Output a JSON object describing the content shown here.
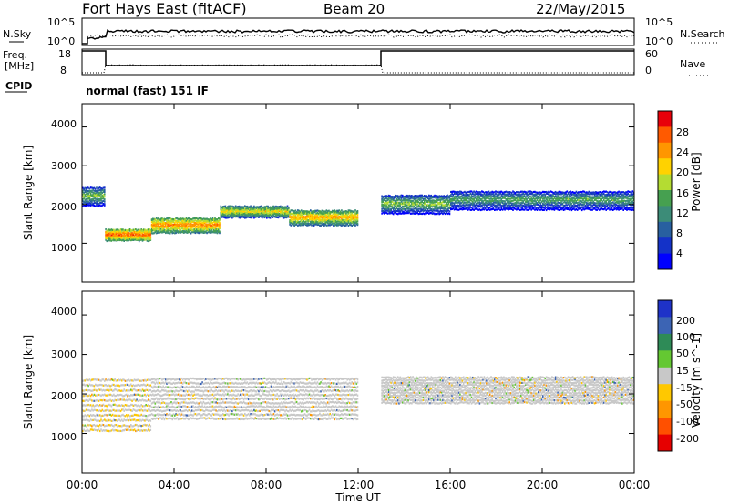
{
  "header": {
    "station": "Fort Hays East (fitACF)",
    "beam": "Beam 20",
    "date": "22/May/2015"
  },
  "top_panels": {
    "nsky_label": "N.Sky",
    "nsky_ticks": [
      "10^5",
      "10^0"
    ],
    "nsearch_label": "N.Search",
    "freq_label": "Freq.",
    "freq_unit": "[MHz]",
    "freq_ticks": [
      "18",
      "8"
    ],
    "nave_label": "Nave",
    "nave_ticks": [
      "60",
      "0"
    ],
    "cpid_label": "CPID",
    "cpid_value": "normal (fast) 151 IF"
  },
  "power_colorbar": {
    "label": "Power [dB]",
    "ticks": [
      "28",
      "24",
      "20",
      "16",
      "12",
      "8",
      "4"
    ],
    "colors": [
      "#e8000a",
      "#ff5a00",
      "#ff9600",
      "#ffd200",
      "#b4dc32",
      "#46a050",
      "#3c8c78",
      "#2860a0",
      "#1432c8",
      "#0000ff"
    ]
  },
  "velocity_colorbar": {
    "label": "Velocity [m s^-1]",
    "ticks": [
      "200",
      "100",
      "50",
      "15",
      "-15",
      "-50",
      "-100",
      "-200"
    ],
    "colors": [
      "#1e32c8",
      "#3c64b4",
      "#2e8b57",
      "#64c832",
      "#c8c8c8",
      "#ffc800",
      "#ff9600",
      "#ff5000",
      "#e60000"
    ]
  },
  "axes": {
    "ylabel": "Slant Range [km]",
    "yticks": [
      "4000",
      "3000",
      "2000",
      "1000"
    ],
    "xlabel": "Time UT",
    "xticks": [
      "00:00",
      "04:00",
      "08:00",
      "12:00",
      "16:00",
      "20:00",
      "00:00"
    ]
  },
  "chart_data": [
    {
      "type": "heatmap",
      "title": "",
      "quantity": "Power [dB]",
      "xlabel": "Time UT",
      "ylabel": "Slant Range [km]",
      "xlim_hours": [
        0,
        24
      ],
      "ylim_km": [
        0,
        4600
      ],
      "clim_db": [
        0,
        30
      ],
      "scatter_bands": [
        {
          "t_start": 0.0,
          "t_end": 1.0,
          "range_km": [
            2000,
            2500
          ],
          "power_db": 16
        },
        {
          "t_start": 1.0,
          "t_end": 3.0,
          "range_km": [
            1100,
            1400
          ],
          "power_db": 26
        },
        {
          "t_start": 3.0,
          "t_end": 6.0,
          "range_km": [
            1300,
            1700
          ],
          "power_db": 24
        },
        {
          "t_start": 6.0,
          "t_end": 9.0,
          "range_km": [
            1700,
            2000
          ],
          "power_db": 20
        },
        {
          "t_start": 9.0,
          "t_end": 12.0,
          "range_km": [
            1500,
            1900
          ],
          "power_db": 22
        },
        {
          "t_start": 13.0,
          "t_end": 16.0,
          "range_km": [
            1800,
            2300
          ],
          "power_db": 16
        },
        {
          "t_start": 16.0,
          "t_end": 24.0,
          "range_km": [
            1900,
            2400
          ],
          "power_db": 14
        }
      ]
    },
    {
      "type": "heatmap",
      "title": "",
      "quantity": "Velocity [m s^-1]",
      "xlabel": "Time UT",
      "ylabel": "Slant Range [km]",
      "xlim_hours": [
        0,
        24
      ],
      "ylim_km": [
        0,
        4600
      ],
      "clim_ms": [
        -200,
        200
      ],
      "scatter_bands": [
        {
          "t_start": 0.0,
          "t_end": 3.0,
          "range_km": [
            1100,
            2500
          ],
          "velocity_ms": -10
        },
        {
          "t_start": 3.0,
          "t_end": 12.0,
          "range_km": [
            1400,
            2500
          ],
          "velocity_ms": 0
        },
        {
          "t_start": 13.0,
          "t_end": 24.0,
          "range_km": [
            1800,
            2500
          ],
          "velocity_ms": 0
        }
      ]
    }
  ]
}
